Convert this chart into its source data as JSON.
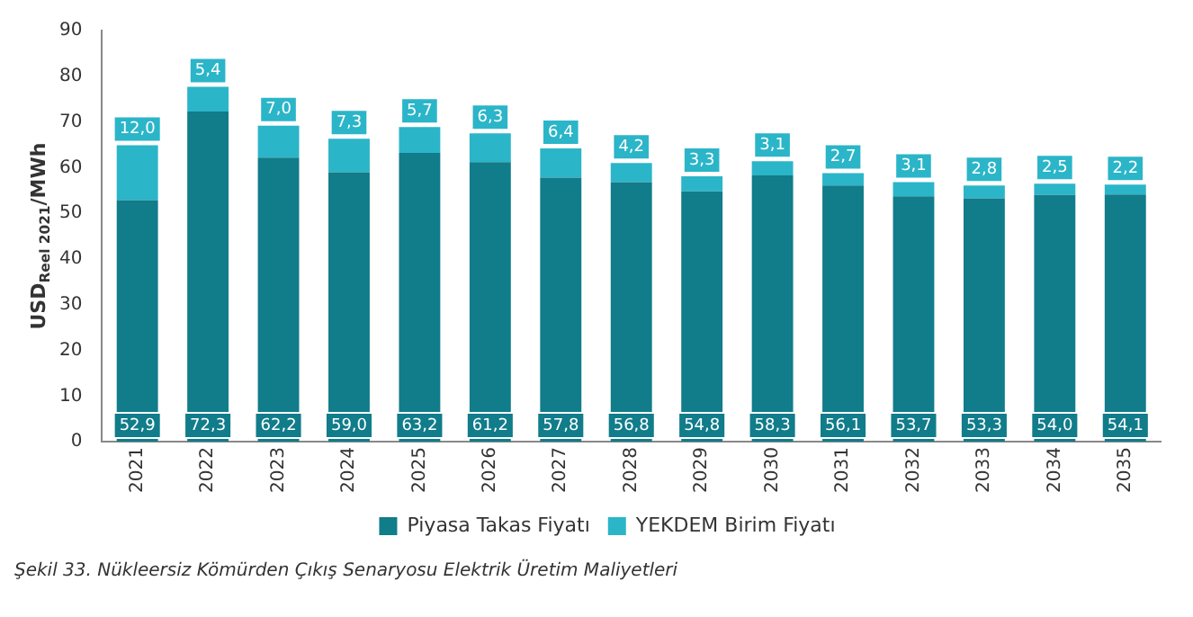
{
  "chart_data": {
    "type": "bar",
    "stacked": true,
    "ylabel": "USD$_{Reel 2021}$/MWh",
    "categories": [
      "2021",
      "2022",
      "2023",
      "2024",
      "2025",
      "2026",
      "2027",
      "2028",
      "2029",
      "2030",
      "2031",
      "2032",
      "2033",
      "2034",
      "2035"
    ],
    "series": [
      {
        "name": "Piyasa Takas Fiyatı",
        "color": "#117c8a",
        "values": [
          52.9,
          72.3,
          62.2,
          59.0,
          63.2,
          61.2,
          57.8,
          56.8,
          54.8,
          58.3,
          56.1,
          53.7,
          53.3,
          54.0,
          54.1
        ],
        "value_labels": [
          "52,9",
          "72,3",
          "62,2",
          "59,0",
          "63,2",
          "61,2",
          "57,8",
          "56,8",
          "54,8",
          "58,3",
          "56,1",
          "53,7",
          "53,3",
          "54,0",
          "54,1"
        ]
      },
      {
        "name": "YEKDEM Birim Fiyatı",
        "color": "#2bb5c8",
        "values": [
          12.0,
          5.4,
          7.0,
          7.3,
          5.7,
          6.3,
          6.4,
          4.2,
          3.3,
          3.1,
          2.7,
          3.1,
          2.8,
          2.5,
          2.2
        ],
        "value_labels": [
          "12,0",
          "5,4",
          "7,0",
          "7,3",
          "5,7",
          "6,3",
          "6,4",
          "4,2",
          "3,3",
          "3,1",
          "2,7",
          "3,1",
          "2,8",
          "2,5",
          "2,2"
        ]
      }
    ],
    "ylim": [
      0,
      90
    ],
    "yticks": [
      0,
      10,
      20,
      30,
      40,
      50,
      60,
      70,
      80,
      90
    ],
    "grid": false,
    "legend": "bottom",
    "annotations": [
      "Şekil 33. Nükleersiz Kömürden Çıkış Senaryosu Elektrik Üretim Maliyetleri"
    ]
  }
}
